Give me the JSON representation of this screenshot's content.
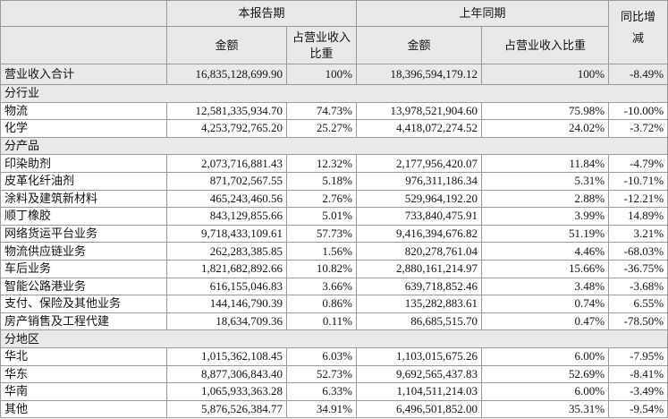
{
  "table": {
    "header": {
      "current": "本报告期",
      "previous": "上年同期",
      "yoy": "同比增减",
      "amount": "金额",
      "ratio": "占营业收入比重",
      "amount_prev": "金额",
      "ratio_prev": "占营业收入比重"
    },
    "rows": [
      {
        "total": [
          "营业收入合计",
          "16,835,128,699.90",
          "100%",
          "18,396,594,179.12",
          "100%",
          "-8.49%"
        ]
      },
      {
        "section": "分行业"
      },
      {
        "cells": [
          "物流",
          "12,581,335,934.70",
          "74.73%",
          "13,978,521,904.60",
          "75.98%",
          "-10.00%"
        ]
      },
      {
        "cells": [
          "化学",
          "4,253,792,765.20",
          "25.27%",
          "4,418,072,274.52",
          "24.02%",
          "-3.72%"
        ]
      },
      {
        "section": "分产品"
      },
      {
        "cells": [
          "印染助剂",
          "2,073,716,881.43",
          "12.32%",
          "2,177,956,420.07",
          "11.84%",
          "-4.79%"
        ]
      },
      {
        "cells": [
          "皮革化纤油剂",
          "871,702,567.55",
          "5.18%",
          "976,311,186.34",
          "5.31%",
          "-10.71%"
        ]
      },
      {
        "cells": [
          "涂料及建筑新材料",
          "465,243,460.56",
          "2.76%",
          "529,964,192.20",
          "2.88%",
          "-12.21%"
        ]
      },
      {
        "cells": [
          "顺丁橡胶",
          "843,129,855.66",
          "5.01%",
          "733,840,475.91",
          "3.99%",
          "14.89%"
        ]
      },
      {
        "cells": [
          "网络货运平台业务",
          "9,718,433,109.61",
          "57.73%",
          "9,416,394,676.82",
          "51.19%",
          "3.21%"
        ]
      },
      {
        "cells": [
          "物流供应链业务",
          "262,283,385.85",
          "1.56%",
          "820,278,761.04",
          "4.46%",
          "-68.03%"
        ]
      },
      {
        "cells": [
          "车后业务",
          "1,821,682,892.66",
          "10.82%",
          "2,880,161,214.97",
          "15.66%",
          "-36.75%"
        ]
      },
      {
        "cells": [
          "智能公路港业务",
          "616,155,046.83",
          "3.66%",
          "639,718,852.46",
          "3.48%",
          "-3.68%"
        ]
      },
      {
        "cells": [
          "支付、保险及其他业务",
          "144,146,790.39",
          "0.86%",
          "135,282,883.61",
          "0.74%",
          "6.55%"
        ]
      },
      {
        "cells": [
          "房产销售及工程代建",
          "18,634,709.36",
          "0.11%",
          "86,685,515.70",
          "0.47%",
          "-78.50%"
        ]
      },
      {
        "section": "分地区"
      },
      {
        "cells": [
          "华北",
          "1,015,362,108.45",
          "6.03%",
          "1,103,015,675.26",
          "6.00%",
          "-7.95%"
        ]
      },
      {
        "cells": [
          "华东",
          "8,877,306,843.40",
          "52.73%",
          "9,692,565,437.83",
          "52.69%",
          "-8.41%"
        ]
      },
      {
        "cells": [
          "华南",
          "1,065,933,363.28",
          "6.33%",
          "1,104,511,214.03",
          "6.00%",
          "-3.49%"
        ]
      },
      {
        "cells": [
          "其他",
          "5,876,526,384.77",
          "34.91%",
          "6,496,501,852.00",
          "35.31%",
          "-9.54%"
        ]
      }
    ]
  }
}
